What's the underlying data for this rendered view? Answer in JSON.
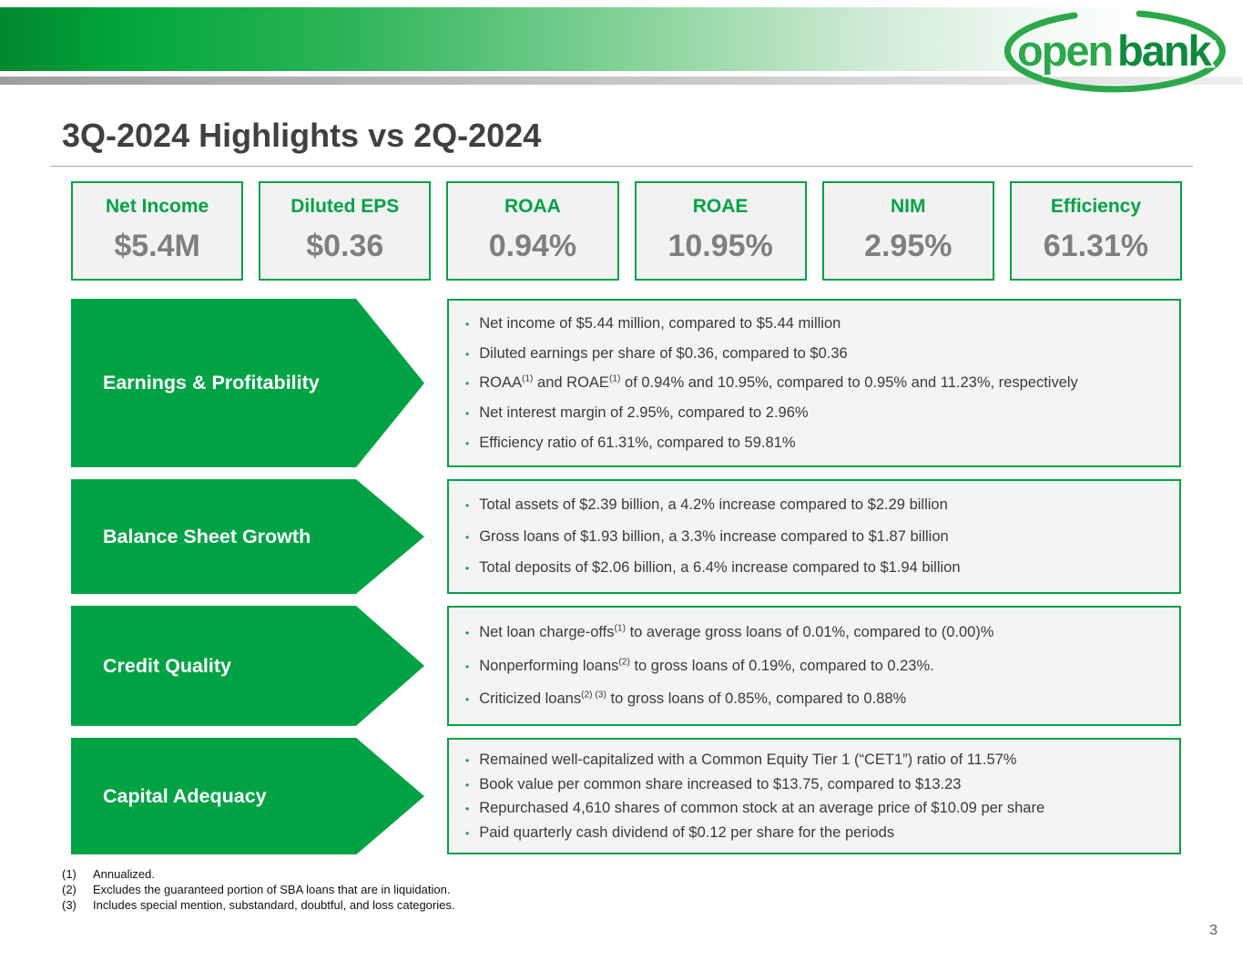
{
  "logo": {
    "word1": "open",
    "word2": "bank"
  },
  "title": "3Q-2024 Highlights vs 2Q-2024",
  "colors": {
    "brand_green": "#00A344",
    "header_gradient_start": "#00892E",
    "value_gray": "#7F7F7F",
    "card_background": "#F2F2F2"
  },
  "metrics": [
    {
      "label": "Net Income",
      "value": "$5.4M"
    },
    {
      "label": "Diluted EPS",
      "value": "$0.36"
    },
    {
      "label": "ROAA",
      "value": "0.94%"
    },
    {
      "label": "ROAE",
      "value": "10.95%"
    },
    {
      "label": "NIM",
      "value": "2.95%"
    },
    {
      "label": "Efficiency",
      "value": "61.31%"
    }
  ],
  "sections": [
    {
      "label": "Earnings & Profitability",
      "bullets": [
        [
          {
            "text": "Net income of $5.44 million, compared to $5.44 million"
          }
        ],
        [
          {
            "text": "Diluted earnings per share of $0.36, compared to $0.36"
          }
        ],
        [
          {
            "text": "ROAA"
          },
          {
            "sup": "(1)"
          },
          {
            "text": " and ROAE"
          },
          {
            "sup": "(1)"
          },
          {
            "text": " of 0.94% and 10.95%, compared to 0.95% and 11.23%, respectively"
          }
        ],
        [
          {
            "text": "Net interest margin of 2.95%, compared to 2.96%"
          }
        ],
        [
          {
            "text": "Efficiency ratio of 61.31%, compared to 59.81%"
          }
        ]
      ]
    },
    {
      "label": "Balance Sheet Growth",
      "bullets": [
        [
          {
            "text": "Total assets of $2.39 billion, a 4.2% increase compared to $2.29 billion"
          }
        ],
        [
          {
            "text": "Gross loans of $1.93 billion, a 3.3% increase compared to $1.87 billion"
          }
        ],
        [
          {
            "text": "Total deposits of $2.06 billion, a 6.4% increase compared to $1.94 billion"
          }
        ]
      ]
    },
    {
      "label": "Credit Quality",
      "bullets": [
        [
          {
            "text": "Net loan charge-offs"
          },
          {
            "sup": "(1)"
          },
          {
            "text": " to average gross loans of 0.01%, compared to (0.00)%"
          }
        ],
        [
          {
            "text": "Nonperforming loans"
          },
          {
            "sup": "(2)"
          },
          {
            "text": " to gross loans of 0.19%, compared to 0.23%."
          }
        ],
        [
          {
            "text": "Criticized loans"
          },
          {
            "sup": "(2) (3)"
          },
          {
            "text": " to gross loans of 0.85%, compared to 0.88%"
          }
        ]
      ]
    },
    {
      "label": "Capital Adequacy",
      "bullets": [
        [
          {
            "text": "Remained well-capitalized with a Common Equity Tier 1 (“CET1”) ratio of 11.57%"
          }
        ],
        [
          {
            "text": "Book value per common share increased to $13.75, compared to $13.23"
          }
        ],
        [
          {
            "text": "Repurchased 4,610 shares of common stock at an average price of $10.09 per share"
          }
        ],
        [
          {
            "text": "Paid quarterly cash dividend of $0.12 per share for the periods"
          }
        ]
      ]
    }
  ],
  "footnotes": [
    {
      "num": "(1)",
      "text": "Annualized."
    },
    {
      "num": "(2)",
      "text": "Excludes the guaranteed portion of SBA loans that are in liquidation."
    },
    {
      "num": "(3)",
      "text": "Includes special mention, substandard, doubtful, and loss categories."
    }
  ],
  "page_number": "3"
}
